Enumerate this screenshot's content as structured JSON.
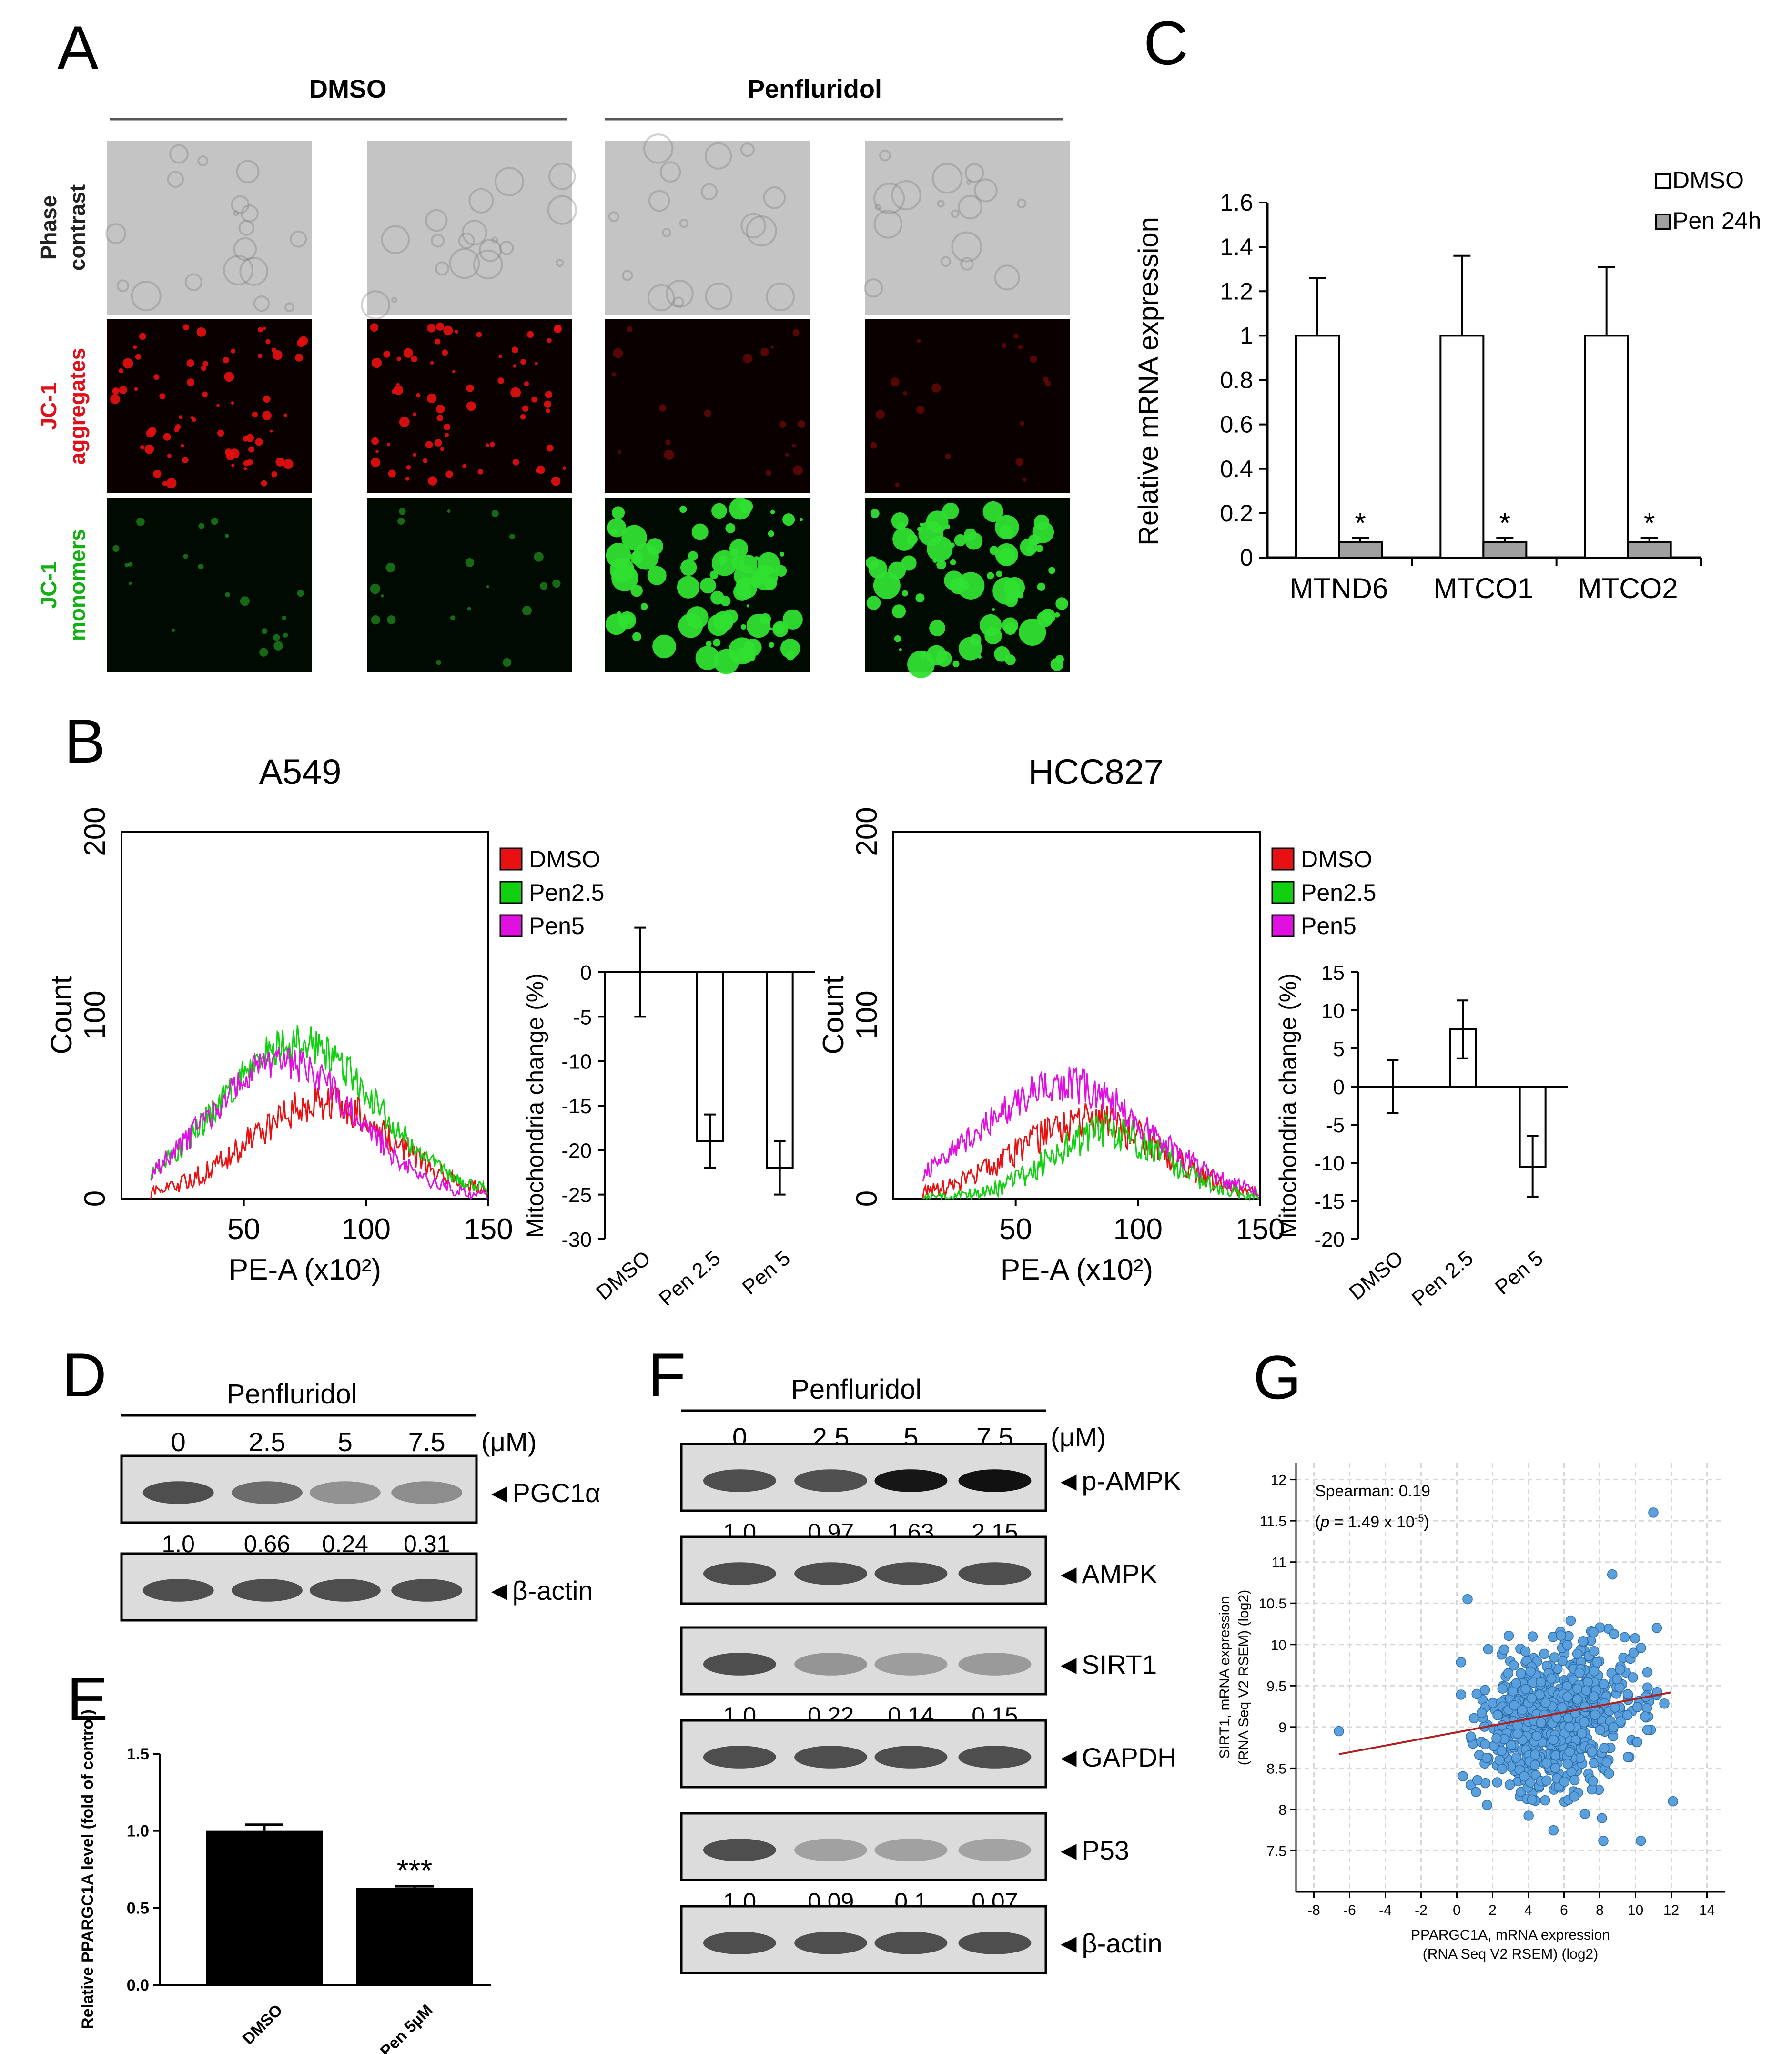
{
  "panels": {
    "A": "A",
    "B": "B",
    "C": "C",
    "D": "D",
    "E": "E",
    "F": "F",
    "G": "G"
  },
  "panel_a": {
    "groups": [
      "DMSO",
      "Penfluridol"
    ],
    "rows": [
      {
        "line1": "Phase",
        "line2": "contrast",
        "color": "#222222",
        "bg": "#c4c4c4",
        "dot": "#7a7a7a"
      },
      {
        "line1": "JC-1",
        "line2": "aggregates",
        "color": "#e0101a",
        "bg": "#0a0000",
        "dot": "#e81010"
      },
      {
        "line1": "JC-1",
        "line2": "monomers",
        "color": "#10b010",
        "bg": "#000a00",
        "dot": "#30e030"
      }
    ]
  },
  "chart_data": [
    {
      "id": "C",
      "type": "bar",
      "ylabel": "Relative mRNA expression",
      "categories": [
        "MTND6",
        "MTCO1",
        "MTCO2"
      ],
      "ylim": [
        0,
        1.6
      ],
      "yticks": [
        "0",
        "0.2",
        "0.4",
        "0.6",
        "0.8",
        "1",
        "1.2",
        "1.4",
        "1.6"
      ],
      "series": [
        {
          "name": "DMSO",
          "values": [
            1,
            1,
            1
          ],
          "errors": [
            0.26,
            0.36,
            0.31
          ],
          "color": "#ffffff"
        },
        {
          "name": "Pen 24h",
          "values": [
            0.07,
            0.07,
            0.07
          ],
          "errors": [
            0.02,
            0.02,
            0.02
          ],
          "color": "#a0a0a0"
        }
      ],
      "annotations": [
        "*",
        "*",
        "*"
      ]
    },
    {
      "id": "B-A549-hist",
      "type": "line",
      "title": "A549",
      "xlabel": "PE-A (x10²)",
      "ylabel": "Count",
      "xticks": [
        "50",
        "100",
        "150"
      ],
      "yticks": [
        "0",
        "100",
        "200"
      ],
      "xlim": [
        0,
        150
      ],
      "ylim": [
        0,
        200
      ],
      "series": [
        {
          "name": "DMSO",
          "color": "#e81010",
          "peak_x": 82,
          "peak_y": 52,
          "width": 30
        },
        {
          "name": "Pen2.5",
          "color": "#10d010",
          "peak_x": 72,
          "peak_y": 85,
          "width": 32
        },
        {
          "name": "Pen5",
          "color": "#e010e0",
          "peak_x": 66,
          "peak_y": 75,
          "width": 30
        }
      ]
    },
    {
      "id": "B-A549-bar",
      "type": "bar",
      "ylabel": "Mitochondria change (%)",
      "categories": [
        "DMSO",
        "Pen 2.5",
        "Pen 5"
      ],
      "values": [
        0,
        -19,
        -22
      ],
      "errors": [
        5,
        3,
        3
      ],
      "ylim": [
        -30,
        0
      ],
      "yticks": [
        "0",
        "-5",
        "-10",
        "-15",
        "-20",
        "-25",
        "-30"
      ]
    },
    {
      "id": "B-HCC827-hist",
      "type": "line",
      "title": "HCC827",
      "xlabel": "PE-A (x10²)",
      "ylabel": "Count",
      "xticks": [
        "50",
        "100",
        "150"
      ],
      "yticks": [
        "0",
        "100",
        "200"
      ],
      "xlim": [
        0,
        150
      ],
      "ylim": [
        0,
        200
      ],
      "series": [
        {
          "name": "DMSO",
          "color": "#e81010",
          "peak_x": 80,
          "peak_y": 42,
          "width": 30
        },
        {
          "name": "Pen2.5",
          "color": "#10d010",
          "peak_x": 88,
          "peak_y": 36,
          "width": 24
        },
        {
          "name": "Pen5",
          "color": "#e010e0",
          "peak_x": 70,
          "peak_y": 62,
          "width": 34
        }
      ]
    },
    {
      "id": "B-HCC827-bar",
      "type": "bar",
      "ylabel": "Mitochondria change (%)",
      "categories": [
        "DMSO",
        "Pen 2.5",
        "Pen 5"
      ],
      "values": [
        0,
        7.5,
        -10.5
      ],
      "errors": [
        3.5,
        3.8,
        4
      ],
      "ylim": [
        -20,
        15
      ],
      "yticks": [
        "15",
        "10",
        "5",
        "0",
        "-5",
        "-10",
        "-15",
        "-20"
      ]
    },
    {
      "id": "E",
      "type": "bar",
      "ylabel": "Relative PPARGC1A level (fold of control)",
      "categories": [
        "DMSO",
        "Pen 5µM"
      ],
      "values": [
        1.0,
        0.63
      ],
      "errors": [
        0.04,
        0.01
      ],
      "ylim": [
        0,
        1.5
      ],
      "yticks": [
        "0.0",
        "0.5",
        "1.0",
        "1.5"
      ],
      "annotation": "***"
    },
    {
      "id": "G",
      "type": "scatter",
      "xlabel1": "PPARGC1A, mRNA expression",
      "xlabel2": "(RNA Seq V2 RSEM) (log2)",
      "ylabel1": "SIRT1, mRNA expression",
      "ylabel2": "(RNA Seq V2 RSEM) (log2)",
      "xlim": [
        -9,
        15
      ],
      "ylim": [
        7,
        12.2
      ],
      "xticks": [
        "-8",
        "-6",
        "-4",
        "-2",
        "0",
        "2",
        "4",
        "6",
        "8",
        "10",
        "12",
        "14"
      ],
      "yticks": [
        "7.5",
        "8",
        "8.5",
        "9",
        "9.5",
        "10",
        "10.5",
        "11",
        "11.5",
        "12"
      ],
      "stat1": "Spearman: 0.19",
      "stat2_a": "(",
      "stat2_p": "p",
      "stat2_b": " = 1.49 x 10",
      "stat2_exp": "-5",
      "stat2_c": ")",
      "regression": {
        "x1": -6.6,
        "y1": 8.67,
        "x2": 12,
        "y2": 9.42
      },
      "cloud": {
        "n": 650,
        "cx": 5.6,
        "cy": 9.1,
        "sx": 2.2,
        "sy": 0.45
      },
      "points": [
        [
          -6.6,
          8.95
        ],
        [
          0.6,
          10.55
        ],
        [
          11.0,
          11.6
        ],
        [
          12.1,
          8.1
        ],
        [
          10.3,
          7.62
        ],
        [
          8.2,
          7.62
        ],
        [
          8.7,
          10.85
        ]
      ]
    }
  ],
  "blot_d": {
    "header": "Penfluridol",
    "unit": "(μM)",
    "doses": [
      "0",
      "2.5",
      "5",
      "7.5"
    ],
    "bands": [
      {
        "label": "PGC1α",
        "ratios": [
          "1.0",
          "0.66",
          "0.24",
          "0.31"
        ]
      },
      {
        "label": "β-actin",
        "ratios": []
      }
    ]
  },
  "blot_f": {
    "header": "Penfluridol",
    "unit": "(μM)",
    "doses": [
      "0",
      "2.5",
      "5",
      "7.5"
    ],
    "bands": [
      {
        "label": "p-AMPK",
        "ratios": [
          "1.0",
          "0.97",
          "1.63",
          "2.15"
        ]
      },
      {
        "label": "AMPK",
        "ratios": []
      },
      {
        "label": "SIRT1",
        "ratios": [
          "1.0",
          "0.22",
          "0.14",
          "0.15"
        ]
      },
      {
        "label": "GAPDH",
        "ratios": []
      },
      {
        "label": "P53",
        "ratios": [
          "1.0",
          "0.09",
          "0.1",
          "0.07"
        ]
      },
      {
        "label": "β-actin",
        "ratios": []
      }
    ]
  }
}
